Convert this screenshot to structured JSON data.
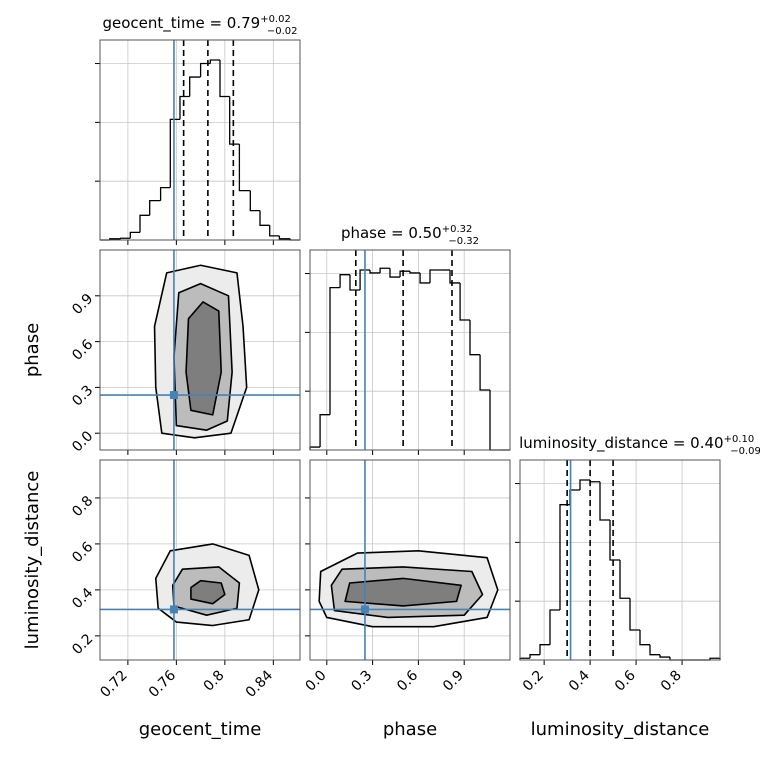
{
  "chart_data": {
    "type": "corner",
    "truth_color": "#4682b4",
    "grid": true,
    "hist_ylim": [
      0,
      3.4
    ],
    "hist_yticks": [
      1,
      2,
      3
    ],
    "parameters": [
      {
        "name": "geocent_time",
        "lim": [
          0.697,
          0.862
        ],
        "ticks": [
          0.72,
          0.76,
          0.8,
          0.84
        ],
        "truth": 0.758,
        "quantiles": [
          0.766,
          0.786,
          0.807
        ],
        "title": {
          "text": "geocent_time = 0.79",
          "upper": "+0.02",
          "lower": "−0.02"
        },
        "bins": [
          0.697,
          0.705,
          0.714,
          0.722,
          0.73,
          0.738,
          0.747,
          0.755,
          0.763,
          0.771,
          0.78,
          0.788,
          0.796,
          0.804,
          0.812,
          0.821,
          0.829,
          0.837,
          0.845,
          0.854,
          0.862
        ],
        "counts": [
          0,
          0.02,
          0.03,
          0.13,
          0.42,
          0.67,
          0.89,
          2.05,
          2.44,
          2.77,
          3.0,
          3.06,
          2.44,
          1.63,
          0.84,
          0.5,
          0.25,
          0.07,
          0.02,
          0
        ]
      },
      {
        "name": "phase",
        "lim": [
          -0.11,
          1.2
        ],
        "ticks": [
          {
            "value": 0,
            "label": "0.0"
          },
          0.3,
          0.6,
          0.9
        ],
        "truth": 0.25,
        "quantiles": [
          0.19,
          0.5,
          0.82
        ],
        "title": {
          "text": "phase = 0.50",
          "upper": "+0.32",
          "lower": "−0.32"
        },
        "bins": [
          -0.11,
          -0.044,
          0.021,
          0.087,
          0.152,
          0.218,
          0.283,
          0.349,
          0.414,
          0.48,
          0.545,
          0.611,
          0.676,
          0.742,
          0.807,
          0.873,
          0.938,
          1.004,
          1.069,
          1.135,
          1.2
        ],
        "counts": [
          0.05,
          0.6,
          2.76,
          2.98,
          2.72,
          3.06,
          3.01,
          3.09,
          2.94,
          3.04,
          3.01,
          2.84,
          3.06,
          3.06,
          2.84,
          2.21,
          1.62,
          1.02,
          0,
          0
        ]
      },
      {
        "name": "luminosity_distance",
        "lim": [
          0.095,
          0.965
        ],
        "ticks": [
          0.2,
          0.4,
          0.6,
          0.8
        ],
        "truth": 0.315,
        "quantiles": [
          0.3,
          0.4,
          0.5
        ],
        "title": {
          "text": "luminosity_distance = 0.40",
          "upper": "+0.10",
          "lower": "−0.09"
        },
        "bins": [
          0.095,
          0.1385,
          0.182,
          0.2255,
          0.269,
          0.3125,
          0.356,
          0.3995,
          0.443,
          0.4865,
          0.53,
          0.5735,
          0.617,
          0.6605,
          0.704,
          0.7475,
          0.791,
          0.8345,
          0.878,
          0.9215,
          0.965
        ],
        "counts": [
          0.03,
          0.09,
          0.26,
          0.85,
          2.64,
          2.89,
          3.06,
          3.03,
          2.38,
          1.7,
          1.05,
          0.51,
          0.26,
          0.09,
          0.05,
          0,
          0,
          0,
          0,
          0.03
        ]
      }
    ],
    "pairs": [
      {
        "x": 0,
        "y": 1,
        "contours": [
          {
            "x": [
              0.748,
              0.775,
              0.805,
              0.818,
              0.815,
              0.81,
              0.78,
              0.752,
              0.742,
              0.743
            ],
            "y": [
              0.0,
              -0.03,
              0.0,
              0.3,
              0.7,
              1.05,
              1.1,
              1.05,
              0.7,
              0.3
            ]
          },
          {
            "x": [
              0.76,
              0.785,
              0.802,
              0.806,
              0.803,
              0.78,
              0.762,
              0.758
            ],
            "y": [
              0.05,
              0.02,
              0.08,
              0.4,
              0.9,
              0.98,
              0.92,
              0.5
            ]
          },
          {
            "x": [
              0.772,
              0.79,
              0.797,
              0.795,
              0.782,
              0.77,
              0.768
            ],
            "y": [
              0.15,
              0.12,
              0.4,
              0.8,
              0.86,
              0.75,
              0.4
            ]
          }
        ]
      },
      {
        "x": 0,
        "y": 2,
        "contours": [
          {
            "x": [
              0.745,
              0.76,
              0.79,
              0.82,
              0.828,
              0.82,
              0.79,
              0.755,
              0.743
            ],
            "y": [
              0.32,
              0.26,
              0.245,
              0.27,
              0.4,
              0.55,
              0.6,
              0.57,
              0.45
            ]
          },
          {
            "x": [
              0.758,
              0.785,
              0.81,
              0.812,
              0.795,
              0.765,
              0.757
            ],
            "y": [
              0.33,
              0.29,
              0.32,
              0.43,
              0.5,
              0.49,
              0.42
            ]
          },
          {
            "x": [
              0.772,
              0.79,
              0.8,
              0.797,
              0.78,
              0.772
            ],
            "y": [
              0.36,
              0.34,
              0.38,
              0.43,
              0.44,
              0.41
            ]
          }
        ]
      },
      {
        "x": 1,
        "y": 2,
        "contours": [
          {
            "x": [
              0.0,
              0.3,
              0.7,
              1.05,
              1.12,
              1.05,
              0.6,
              0.2,
              -0.04,
              -0.05
            ],
            "y": [
              0.28,
              0.24,
              0.24,
              0.28,
              0.4,
              0.54,
              0.57,
              0.56,
              0.48,
              0.35
            ]
          },
          {
            "x": [
              0.05,
              0.4,
              0.9,
              1.02,
              0.95,
              0.5,
              0.1,
              0.03
            ],
            "y": [
              0.31,
              0.28,
              0.29,
              0.38,
              0.48,
              0.5,
              0.49,
              0.42
            ]
          },
          {
            "x": [
              0.12,
              0.5,
              0.85,
              0.88,
              0.5,
              0.15
            ],
            "y": [
              0.35,
              0.33,
              0.35,
              0.42,
              0.45,
              0.43
            ]
          }
        ]
      }
    ]
  }
}
